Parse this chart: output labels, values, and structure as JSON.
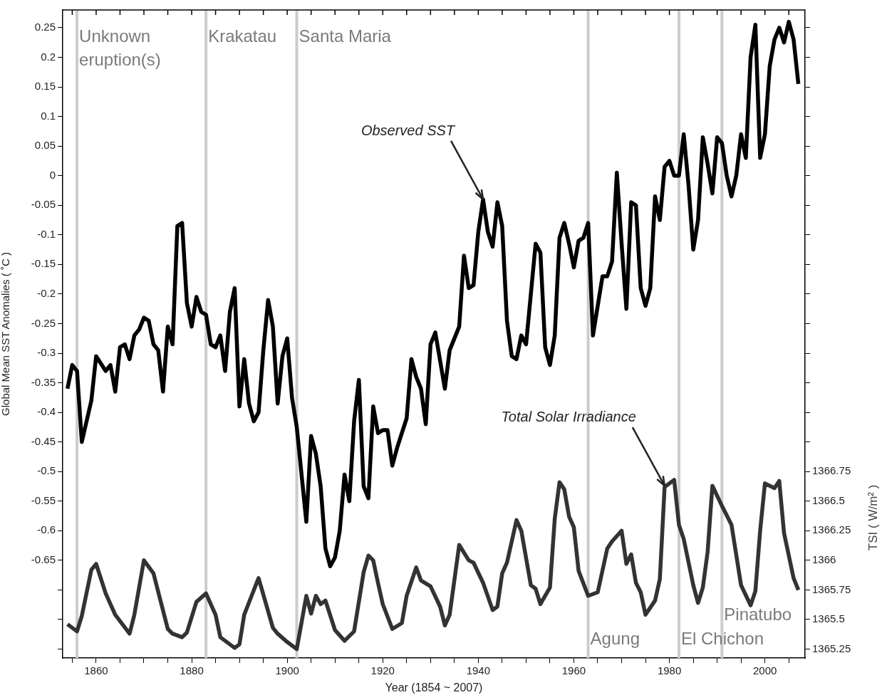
{
  "chart_data": {
    "type": "line",
    "xlabel": "Year (1854 ~ 2007)",
    "ylabel": "Global Mean SST Anomalies ( ˚C )",
    "y2label": "TSI ( W/m² )",
    "xlim": [
      1853,
      2008.4
    ],
    "xticks": [
      {
        "value": 1855,
        "label": null
      },
      1860,
      {
        "value": 1865,
        "label": null
      },
      {
        "value": 1870,
        "label": null
      },
      {
        "value": 1875,
        "label": null
      },
      1880,
      {
        "value": 1885,
        "label": null
      },
      {
        "value": 1890,
        "label": null
      },
      {
        "value": 1895,
        "label": null
      },
      1900,
      {
        "value": 1905,
        "label": null
      },
      {
        "value": 1910,
        "label": null
      },
      {
        "value": 1915,
        "label": null
      },
      1920,
      {
        "value": 1925,
        "label": null
      },
      {
        "value": 1930,
        "label": null
      },
      {
        "value": 1935,
        "label": null
      },
      1940,
      {
        "value": 1945,
        "label": null
      },
      {
        "value": 1950,
        "label": null
      },
      {
        "value": 1955,
        "label": null
      },
      1960,
      {
        "value": 1965,
        "label": null
      },
      {
        "value": 1970,
        "label": null
      },
      {
        "value": 1975,
        "label": null
      },
      1980,
      {
        "value": 1985,
        "label": null
      },
      {
        "value": 1990,
        "label": null
      },
      {
        "value": 1995,
        "label": null
      },
      2000,
      {
        "value": 2005,
        "label": null
      }
    ],
    "ylim": [
      -0.815,
      0.28
    ],
    "yticks": [
      0.25,
      0.2,
      0.15,
      0.1,
      0.05,
      0,
      -0.05,
      -0.1,
      -0.15,
      -0.2,
      -0.25,
      -0.3,
      -0.35,
      -0.4,
      -0.45,
      -0.5,
      -0.55,
      -0.6,
      -0.65,
      {
        "value": -0.7,
        "label": null
      },
      {
        "value": -0.75,
        "label": null
      },
      {
        "value": -0.8,
        "label": null
      }
    ],
    "y2lim": [
      1365.175,
      1370.65
    ],
    "y2ticks": [
      1365.25,
      1365.5,
      1365.75,
      1366,
      1366.25,
      1366.5,
      1366.75,
      {
        "value": 1367,
        "label": null
      },
      {
        "value": 1367.25,
        "label": null
      },
      {
        "value": 1367.5,
        "label": null
      },
      {
        "value": 1367.75,
        "label": null
      },
      {
        "value": 1368,
        "label": null
      },
      {
        "value": 1368.25,
        "label": null
      },
      {
        "value": 1368.5,
        "label": null
      },
      {
        "value": 1368.75,
        "label": null
      },
      {
        "value": 1369,
        "label": null
      },
      {
        "value": 1369.25,
        "label": null
      },
      {
        "value": 1369.5,
        "label": null
      },
      {
        "value": 1369.75,
        "label": null
      },
      {
        "value": 1370,
        "label": null
      },
      {
        "value": 1370.25,
        "label": null
      },
      {
        "value": 1370.5,
        "label": null
      }
    ],
    "series": [
      {
        "color": "#000000",
        "x": [
          1854,
          1855,
          1856,
          1857,
          1859,
          1860,
          1862,
          1863,
          1864,
          1865,
          1866,
          1867,
          1868,
          1869,
          1870,
          1871,
          1872,
          1873,
          1874,
          1875,
          1876,
          1877,
          1878,
          1879,
          1880,
          1881,
          1882,
          1883,
          1884,
          1885,
          1886,
          1887,
          1888,
          1889,
          1890,
          1891,
          1892,
          1893,
          1894,
          1895,
          1896,
          1897,
          1898,
          1899,
          1900,
          1901,
          1902,
          1904,
          1905,
          1906,
          1907,
          1908,
          1909,
          1910,
          1911,
          1912,
          1913,
          1914,
          1915,
          1916,
          1917,
          1918,
          1919,
          1920,
          1921,
          1922,
          1923,
          1924,
          1925,
          1926,
          1927,
          1928,
          1929,
          1930,
          1931,
          1933,
          1934,
          1936,
          1937,
          1938,
          1939,
          1940,
          1941,
          1942,
          1943,
          1944,
          1945,
          1946,
          1947,
          1948,
          1949,
          1950,
          1951,
          1952,
          1953,
          1954,
          1955,
          1956,
          1957,
          1958,
          1959,
          1960,
          1961,
          1962,
          1963,
          1964,
          1965,
          1966,
          1967,
          1968,
          1969,
          1970,
          1971,
          1972,
          1973,
          1974,
          1975,
          1976,
          1977,
          1978,
          1979,
          1980,
          1981,
          1982,
          1983,
          1984,
          1985,
          1986,
          1987,
          1988,
          1989,
          1990,
          1991,
          1992,
          1993,
          1994,
          1995,
          1996,
          1997,
          1998,
          1999,
          2000,
          2001,
          2002,
          2003,
          2004,
          2005,
          2006,
          2007
        ],
        "values": [
          -0.36,
          -0.32,
          -0.33,
          -0.45,
          -0.38,
          -0.305,
          -0.33,
          -0.32,
          -0.365,
          -0.29,
          -0.285,
          -0.31,
          -0.27,
          -0.26,
          -0.24,
          -0.245,
          -0.285,
          -0.295,
          -0.365,
          -0.255,
          -0.285,
          -0.085,
          -0.08,
          -0.215,
          -0.255,
          -0.205,
          -0.23,
          -0.235,
          -0.285,
          -0.29,
          -0.27,
          -0.33,
          -0.23,
          -0.19,
          -0.39,
          -0.31,
          -0.385,
          -0.415,
          -0.4,
          -0.295,
          -0.21,
          -0.255,
          -0.385,
          -0.305,
          -0.275,
          -0.375,
          -0.425,
          -0.585,
          -0.44,
          -0.47,
          -0.525,
          -0.63,
          -0.66,
          -0.645,
          -0.6,
          -0.505,
          -0.55,
          -0.415,
          -0.345,
          -0.525,
          -0.545,
          -0.39,
          -0.435,
          -0.43,
          -0.43,
          -0.49,
          -0.46,
          -0.435,
          -0.41,
          -0.31,
          -0.34,
          -0.36,
          -0.42,
          -0.285,
          -0.265,
          -0.36,
          -0.295,
          -0.255,
          -0.135,
          -0.19,
          -0.185,
          -0.095,
          -0.04,
          -0.095,
          -0.12,
          -0.045,
          -0.085,
          -0.245,
          -0.305,
          -0.31,
          -0.27,
          -0.285,
          -0.2,
          -0.115,
          -0.13,
          -0.29,
          -0.32,
          -0.27,
          -0.105,
          -0.08,
          -0.115,
          -0.155,
          -0.11,
          -0.105,
          -0.08,
          -0.27,
          -0.22,
          -0.17,
          -0.17,
          -0.145,
          0.005,
          -0.115,
          -0.225,
          -0.045,
          -0.05,
          -0.19,
          -0.22,
          -0.19,
          -0.035,
          -0.075,
          0.015,
          0.025,
          0,
          0,
          0.07,
          -0.015,
          -0.125,
          -0.075,
          0.065,
          0.02,
          -0.03,
          0.065,
          0.055,
          0,
          -0.035,
          0,
          0.07,
          0.03,
          0.2,
          0.255,
          0.03,
          0.07,
          0.185,
          0.23,
          0.25,
          0.225,
          0.26,
          0.23,
          0.155
        ]
      },
      {
        "color": "#333333",
        "axis": "y2",
        "x": [
          1854,
          1856,
          1857,
          1859,
          1860,
          1862,
          1864,
          1867,
          1868,
          1870,
          1872,
          1875,
          1876,
          1878,
          1879,
          1881,
          1883,
          1885,
          1886,
          1889,
          1890,
          1891,
          1894,
          1897,
          1898,
          1900,
          1902,
          1904,
          1905,
          1906,
          1907,
          1908,
          1910,
          1912,
          1914,
          1916,
          1917,
          1918,
          1919,
          1920,
          1922,
          1924,
          1925,
          1927,
          1928,
          1930,
          1932,
          1933,
          1934,
          1936,
          1938,
          1939,
          1941,
          1943,
          1944,
          1945,
          1946,
          1948,
          1949,
          1951,
          1952,
          1953,
          1955,
          1956,
          1957,
          1958,
          1959,
          1960,
          1961,
          1963,
          1965,
          1967,
          1968,
          1970,
          1971,
          1972,
          1973,
          1974,
          1975,
          1977,
          1978,
          1979,
          1980,
          1981,
          1982,
          1983,
          1985,
          1986,
          1987,
          1988,
          1989,
          1991,
          1993,
          1995,
          1997,
          1998,
          1999,
          2000,
          2002,
          2003,
          2004,
          2006,
          2007
        ],
        "values": [
          1365.46,
          1365.4,
          1365.53,
          1365.92,
          1365.97,
          1365.72,
          1365.54,
          1365.38,
          1365.54,
          1366,
          1365.89,
          1365.42,
          1365.38,
          1365.35,
          1365.39,
          1365.65,
          1365.72,
          1365.54,
          1365.35,
          1365.26,
          1365.29,
          1365.54,
          1365.85,
          1365.43,
          1365.38,
          1365.31,
          1365.25,
          1365.7,
          1365.55,
          1365.7,
          1365.63,
          1365.66,
          1365.41,
          1365.32,
          1365.4,
          1365.9,
          1366.04,
          1366,
          1365.81,
          1365.63,
          1365.42,
          1365.47,
          1365.7,
          1365.94,
          1365.83,
          1365.78,
          1365.61,
          1365.45,
          1365.54,
          1366.13,
          1366,
          1365.98,
          1365.81,
          1365.58,
          1365.61,
          1365.89,
          1365.98,
          1366.34,
          1366.25,
          1365.79,
          1365.76,
          1365.63,
          1365.77,
          1366.35,
          1366.66,
          1366.6,
          1366.37,
          1366.28,
          1365.91,
          1365.7,
          1365.73,
          1366.1,
          1366.16,
          1366.25,
          1365.97,
          1366.05,
          1365.81,
          1365.73,
          1365.54,
          1365.66,
          1365.84,
          1366.62,
          1366.65,
          1366.68,
          1366.3,
          1366.18,
          1365.79,
          1365.64,
          1365.77,
          1366.07,
          1366.63,
          1366.46,
          1366.3,
          1365.79,
          1365.62,
          1365.74,
          1366.25,
          1366.65,
          1366.61,
          1366.67,
          1366.23,
          1365.85,
          1365.75
        ]
      }
    ],
    "ref_lines": [
      {
        "axis": "x",
        "value": 1856,
        "label": "Unknown eruption(s)",
        "color": "#cccccc"
      },
      {
        "axis": "x",
        "value": 1883,
        "label": "Krakatau",
        "color": "#cccccc"
      },
      {
        "axis": "x",
        "value": 1902,
        "label": "Santa Maria",
        "color": "#cccccc"
      },
      {
        "axis": "x",
        "value": 1963,
        "label": "Agung",
        "color": "#cccccc"
      },
      {
        "axis": "x",
        "value": 1982,
        "label": "El Chichon",
        "color": "#cccccc"
      },
      {
        "axis": "x",
        "value": 1991,
        "label": "Pinatubo",
        "color": "#cccccc"
      }
    ],
    "annotations": [
      {
        "text": "Observed SST",
        "x": 1941,
        "y": -0.04
      },
      {
        "text": "Total Solar Irradiance",
        "x": 1979,
        "y": -0.524
      }
    ]
  }
}
